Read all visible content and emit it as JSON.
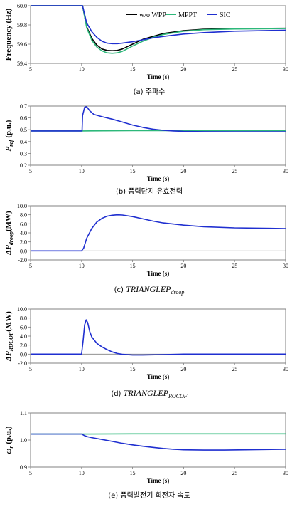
{
  "colors": {
    "w_o_wpp": "#000000",
    "mppt": "#2db87a",
    "sic": "#1f2fd0",
    "zero_line": "#808080"
  },
  "chart_data": [
    {
      "id": "a",
      "type": "line",
      "caption_prefix": "(a)",
      "caption_text": "주파수",
      "ylabel": "Frequency (Hz)",
      "xlabel": "Time (s)",
      "xlim": [
        5,
        30
      ],
      "ylim": [
        59.4,
        60.0
      ],
      "xticks": [
        "5",
        "10",
        "15",
        "20",
        "25",
        "30"
      ],
      "yticks": [
        "59.4",
        "59.6",
        "59.8",
        "60.0"
      ],
      "legend": {
        "placement": "top-right",
        "items": [
          "w/o WPP",
          "MPPT",
          "SIC"
        ]
      },
      "series": [
        {
          "name": "w/o WPP",
          "color_key": "w_o_wpp",
          "x": [
            5,
            10.1,
            10.5,
            11,
            11.5,
            12,
            12.5,
            13,
            13.5,
            14,
            15,
            16,
            17,
            18,
            20,
            22,
            25,
            30
          ],
          "y": [
            60.0,
            60.0,
            59.78,
            59.66,
            59.59,
            59.55,
            59.535,
            59.532,
            59.535,
            59.55,
            59.6,
            59.65,
            59.68,
            59.71,
            59.74,
            59.755,
            59.762,
            59.765
          ]
        },
        {
          "name": "MPPT",
          "color_key": "mppt",
          "x": [
            5,
            10.1,
            10.5,
            11,
            11.5,
            12,
            12.5,
            13,
            13.5,
            14,
            15,
            16,
            17,
            18,
            20,
            22,
            25,
            30
          ],
          "y": [
            60.0,
            60.0,
            59.77,
            59.64,
            59.57,
            59.53,
            59.51,
            59.505,
            59.51,
            59.525,
            59.58,
            59.63,
            59.67,
            59.7,
            59.735,
            59.75,
            59.758,
            59.762
          ]
        },
        {
          "name": "SIC",
          "color_key": "sic",
          "x": [
            5,
            10.1,
            10.5,
            11,
            11.5,
            12,
            12.5,
            13,
            13.5,
            14,
            15,
            16,
            17,
            18,
            20,
            22,
            25,
            30
          ],
          "y": [
            60.0,
            60.0,
            59.82,
            59.73,
            59.67,
            59.63,
            59.61,
            59.605,
            59.605,
            59.61,
            59.625,
            59.645,
            59.665,
            59.68,
            59.705,
            59.72,
            59.735,
            59.745
          ]
        }
      ]
    },
    {
      "id": "b",
      "type": "line",
      "caption_prefix": "(b)",
      "caption_text": "풍력단지 유효전력",
      "ylabel_main": "P",
      "ylabel_sub": "ref",
      "ylabel_unit": " (p.u.)",
      "xlabel": "Time (s)",
      "xlim": [
        5,
        30
      ],
      "ylim": [
        0.2,
        0.7
      ],
      "xticks": [
        "5",
        "10",
        "15",
        "20",
        "25",
        "30"
      ],
      "yticks": [
        "0.2",
        "0.3",
        "0.4",
        "0.5",
        "0.6",
        "0.7"
      ],
      "series": [
        {
          "name": "MPPT",
          "color_key": "mppt",
          "x": [
            5,
            10,
            15,
            20,
            25,
            30
          ],
          "y": [
            0.49,
            0.49,
            0.492,
            0.493,
            0.493,
            0.493
          ]
        },
        {
          "name": "SIC",
          "color_key": "sic",
          "x": [
            5,
            10.05,
            10.1,
            10.3,
            10.5,
            10.8,
            11.2,
            12,
            13,
            14,
            15,
            16,
            17,
            18,
            19,
            20,
            22,
            25,
            30
          ],
          "y": [
            0.49,
            0.49,
            0.62,
            0.69,
            0.695,
            0.66,
            0.63,
            0.61,
            0.59,
            0.565,
            0.54,
            0.52,
            0.505,
            0.495,
            0.49,
            0.486,
            0.484,
            0.483,
            0.483
          ]
        }
      ]
    },
    {
      "id": "c",
      "type": "line",
      "caption_prefix": "(c)",
      "caption_main": "TRIANGLEP",
      "caption_sub": "droop",
      "ylabel_main": "ΔP",
      "ylabel_sub": "droop",
      "ylabel_unit": "(MW)",
      "xlabel": "Time (s)",
      "xlim": [
        5,
        30
      ],
      "ylim": [
        -2.0,
        10.0
      ],
      "xticks": [
        "5",
        "10",
        "15",
        "20",
        "25",
        "30"
      ],
      "yticks": [
        "-2.0",
        "0.0",
        "2.0",
        "4.0",
        "6.0",
        "8.0",
        "10.0"
      ],
      "series": [
        {
          "name": "SIC",
          "color_key": "sic",
          "x": [
            5,
            10,
            10.2,
            10.5,
            11,
            11.5,
            12,
            12.5,
            13,
            13.5,
            14,
            15,
            16,
            17,
            18,
            20,
            22,
            25,
            30
          ],
          "y": [
            0.0,
            0.0,
            0.6,
            2.8,
            5.0,
            6.4,
            7.2,
            7.7,
            7.9,
            8.0,
            7.95,
            7.6,
            7.1,
            6.6,
            6.2,
            5.7,
            5.35,
            5.1,
            4.95
          ]
        }
      ]
    },
    {
      "id": "d",
      "type": "line",
      "caption_prefix": "(d)",
      "caption_main": "TRIANGLEP",
      "caption_sub": "ROCOF",
      "ylabel_main": "ΔP",
      "ylabel_sub": "ROCOF",
      "ylabel_unit": "(MW)",
      "xlabel": "Time (s)",
      "xlim": [
        5,
        30
      ],
      "ylim": [
        -2.0,
        10.0
      ],
      "xticks": [
        "5",
        "10",
        "15",
        "20",
        "25",
        "30"
      ],
      "yticks": [
        "-2.0",
        "0.0",
        "2.0",
        "4.0",
        "6.0",
        "8.0",
        "10.0"
      ],
      "series": [
        {
          "name": "SIC",
          "color_key": "sic",
          "x": [
            5,
            10,
            10.15,
            10.3,
            10.45,
            10.6,
            10.8,
            11,
            11.5,
            12,
            12.5,
            13,
            13.5,
            14,
            15,
            16,
            18,
            20,
            25,
            30
          ],
          "y": [
            0.0,
            0.0,
            3.0,
            6.5,
            7.6,
            7.0,
            5.0,
            3.8,
            2.4,
            1.6,
            1.0,
            0.5,
            0.15,
            -0.05,
            -0.2,
            -0.2,
            -0.1,
            0.0,
            0.0,
            0.0
          ]
        }
      ]
    },
    {
      "id": "e",
      "type": "line",
      "caption_prefix": "(e)",
      "caption_text": "풍력발전기 회전자 속도",
      "ylabel_main": "ω",
      "ylabel_sub": "r",
      "ylabel_unit": " (p.u.)",
      "xlabel": "Time (s)",
      "xlim": [
        5,
        30
      ],
      "ylim": [
        0.9,
        1.1
      ],
      "xticks": [
        "5",
        "10",
        "15",
        "20",
        "25",
        "30"
      ],
      "yticks": [
        "0.9",
        "1.0",
        "1.1"
      ],
      "series": [
        {
          "name": "MPPT",
          "color_key": "mppt",
          "x": [
            5,
            10,
            15,
            20,
            25,
            30
          ],
          "y": [
            1.022,
            1.022,
            1.023,
            1.023,
            1.023,
            1.023
          ]
        },
        {
          "name": "SIC",
          "color_key": "sic",
          "x": [
            5,
            10,
            10.3,
            10.6,
            11,
            12,
            13,
            14,
            15,
            16,
            17,
            18,
            19,
            20,
            22,
            24,
            26,
            28,
            30
          ],
          "y": [
            1.022,
            1.022,
            1.016,
            1.012,
            1.009,
            1.002,
            0.995,
            0.988,
            0.982,
            0.977,
            0.973,
            0.969,
            0.966,
            0.964,
            0.963,
            0.963,
            0.964,
            0.965,
            0.966
          ]
        }
      ]
    }
  ]
}
